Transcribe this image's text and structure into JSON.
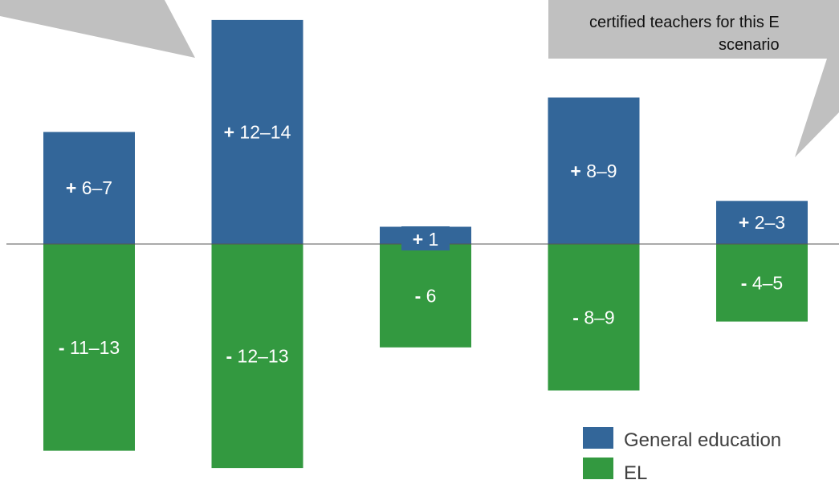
{
  "chart_data": {
    "type": "bar",
    "categories": [
      "",
      "",
      "",
      "",
      ""
    ],
    "series": [
      {
        "name": "General education",
        "color": "#336699",
        "values": [
          6.5,
          13,
          1,
          8.5,
          2.5
        ],
        "labels": [
          {
            "sign": "+",
            "text": " 6–7"
          },
          {
            "sign": "+",
            "text": " 12–14"
          },
          {
            "sign": "+",
            "text": " 1"
          },
          {
            "sign": "+",
            "text": " 8–9"
          },
          {
            "sign": "+",
            "text": " 2–3"
          }
        ]
      },
      {
        "name": "EL",
        "color": "#339940",
        "values": [
          -12,
          -13,
          -6,
          -8.5,
          -4.5
        ],
        "labels": [
          {
            "sign": "-",
            "text": " 11–13"
          },
          {
            "sign": "-",
            "text": " 12–13"
          },
          {
            "sign": "-",
            "text": " 6"
          },
          {
            "sign": "-",
            "text": " 8–9"
          },
          {
            "sign": "-",
            "text": " 4–5"
          }
        ]
      }
    ],
    "legend": [
      "General education",
      "EL"
    ],
    "legend_position": "bottom-right",
    "ylim": [
      -13.6,
      13.6
    ],
    "grid": false,
    "annotations": [
      {
        "lines": [
          "certified teachers for this E",
          "scenario"
        ]
      }
    ]
  },
  "colors": {
    "callout": "#c0c0c0",
    "axis_line": "#555555"
  }
}
